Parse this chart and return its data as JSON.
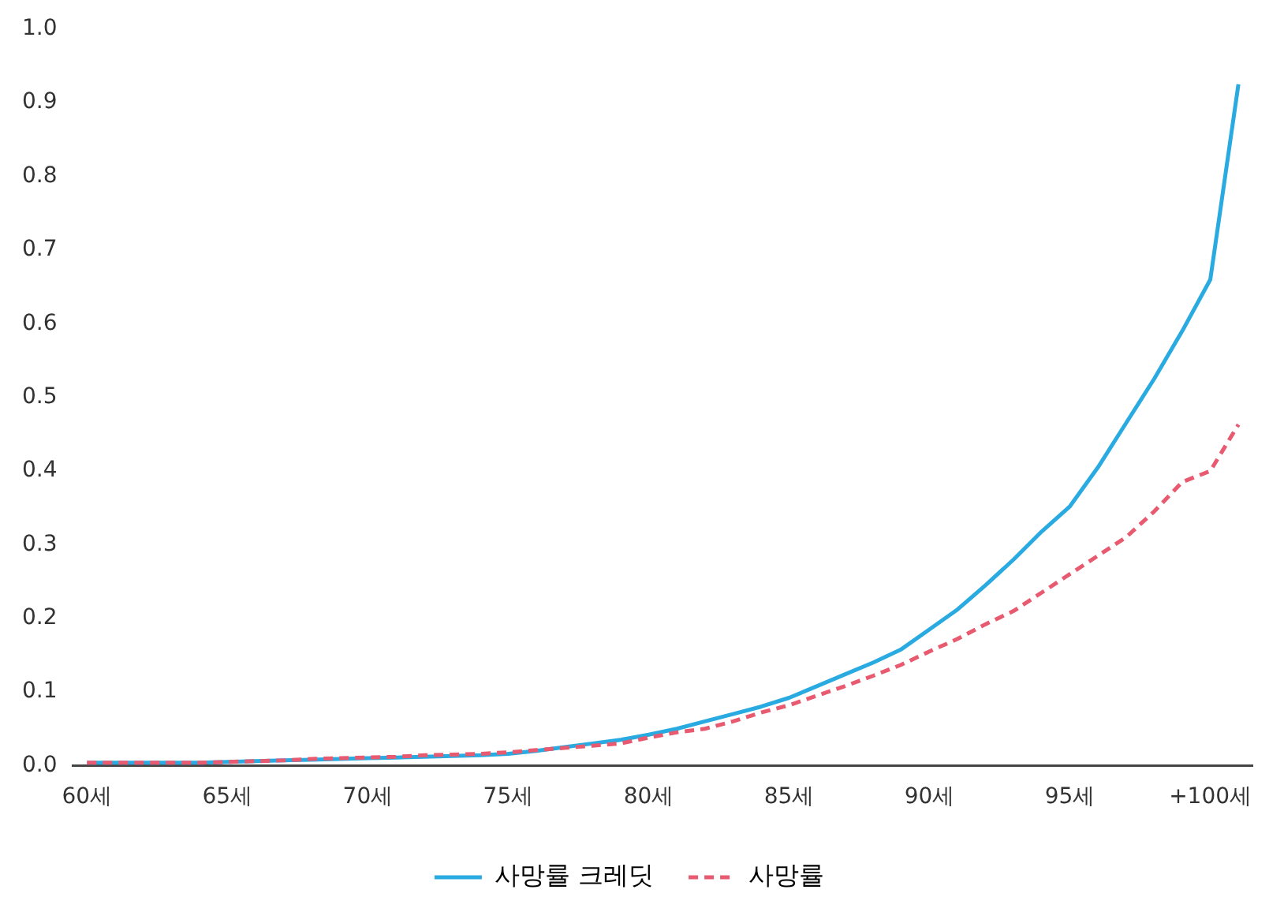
{
  "chart_data": {
    "type": "line",
    "categories": [
      "60세",
      null,
      null,
      null,
      null,
      "65세",
      null,
      null,
      null,
      null,
      "70세",
      null,
      null,
      null,
      null,
      "75세",
      null,
      null,
      null,
      null,
      "80세",
      null,
      null,
      null,
      null,
      "85세",
      null,
      null,
      null,
      null,
      "90세",
      null,
      null,
      null,
      null,
      "95세",
      null,
      null,
      null,
      null,
      "+100세",
      null
    ],
    "series": [
      {
        "name": "사망률 크레딧",
        "color": "#29abe2",
        "line_style": "solid",
        "values": [
          0.004,
          0.004,
          0.004,
          0.004,
          0.004,
          0.005,
          0.006,
          0.007,
          0.008,
          0.009,
          0.01,
          0.011,
          0.012,
          0.013,
          0.014,
          0.016,
          0.02,
          0.025,
          0.03,
          0.035,
          0.042,
          0.05,
          0.06,
          0.07,
          0.08,
          0.092,
          0.108,
          0.124,
          0.14,
          0.158,
          0.185,
          0.212,
          0.245,
          0.28,
          0.318,
          0.352,
          0.405,
          0.465,
          0.525,
          0.59,
          0.66,
          0.925
        ]
      },
      {
        "name": "사망률",
        "color": "#e85a70",
        "line_style": "dashed",
        "values": [
          0.004,
          0.004,
          0.004,
          0.004,
          0.004,
          0.005,
          0.006,
          0.007,
          0.009,
          0.01,
          0.011,
          0.012,
          0.014,
          0.015,
          0.016,
          0.018,
          0.021,
          0.024,
          0.027,
          0.03,
          0.038,
          0.045,
          0.05,
          0.06,
          0.072,
          0.082,
          0.095,
          0.108,
          0.122,
          0.137,
          0.155,
          0.172,
          0.192,
          0.21,
          0.235,
          0.26,
          0.285,
          0.31,
          0.345,
          0.385,
          0.4,
          0.463
        ]
      }
    ],
    "ylim": [
      0,
      1
    ],
    "yticks": [
      {
        "value": 0,
        "label": "0.0"
      },
      0.1,
      0.2,
      0.3,
      0.4,
      0.5,
      0.6,
      0.7,
      0.8,
      0.9,
      {
        "value": 1,
        "label": "1.0"
      }
    ],
    "grid": false,
    "legend": "bottom",
    "marker": "none"
  }
}
